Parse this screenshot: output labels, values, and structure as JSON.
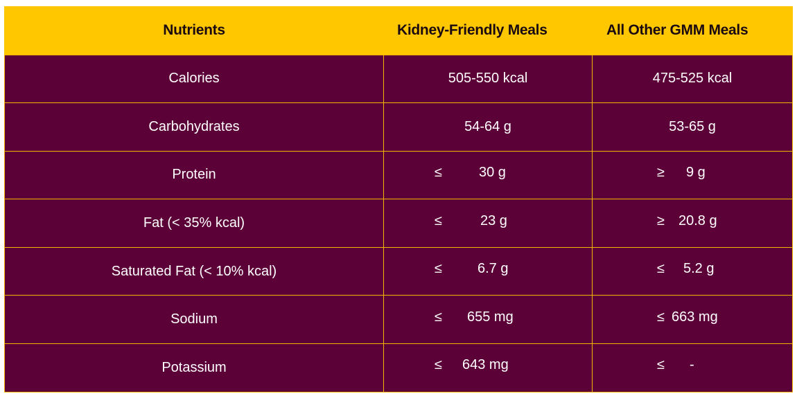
{
  "headers": {
    "nutrients": "Nutrients",
    "kidney": "Kidney-Friendly Meals",
    "other": "All Other GMM Meals"
  },
  "rows": [
    {
      "nutrient": "Calories",
      "kidney_sym": "",
      "kidney": "505-550 kcal",
      "other_sym": "",
      "other": "475-525 kcal"
    },
    {
      "nutrient": "Carbohydrates",
      "kidney_sym": "",
      "kidney": "54-64 g",
      "other_sym": "",
      "other": "53-65 g"
    },
    {
      "nutrient": "Protein",
      "kidney_sym": "≤",
      "kidney": "30 g",
      "other_sym": "≥",
      "other": "9 g"
    },
    {
      "nutrient": "Fat (< 35% kcal)",
      "kidney_sym": "≤",
      "kidney": "23 g",
      "other_sym": "≥",
      "other": "20.8 g"
    },
    {
      "nutrient": "Saturated Fat (< 10% kcal)",
      "kidney_sym": "≤",
      "kidney": "6.7 g",
      "other_sym": "≤",
      "other": "5.2 g"
    },
    {
      "nutrient": "Sodium",
      "kidney_sym": "≤",
      "kidney": "655 mg",
      "other_sym": "≤",
      "other": "663 mg"
    },
    {
      "nutrient": "Potassium",
      "kidney_sym": "≤",
      "kidney": "643 mg",
      "other_sym": "≤",
      "other": "-"
    }
  ],
  "colors": {
    "header_bg": "#ffc700",
    "cell_bg": "#5c0038",
    "grid": "#f5b400"
  }
}
